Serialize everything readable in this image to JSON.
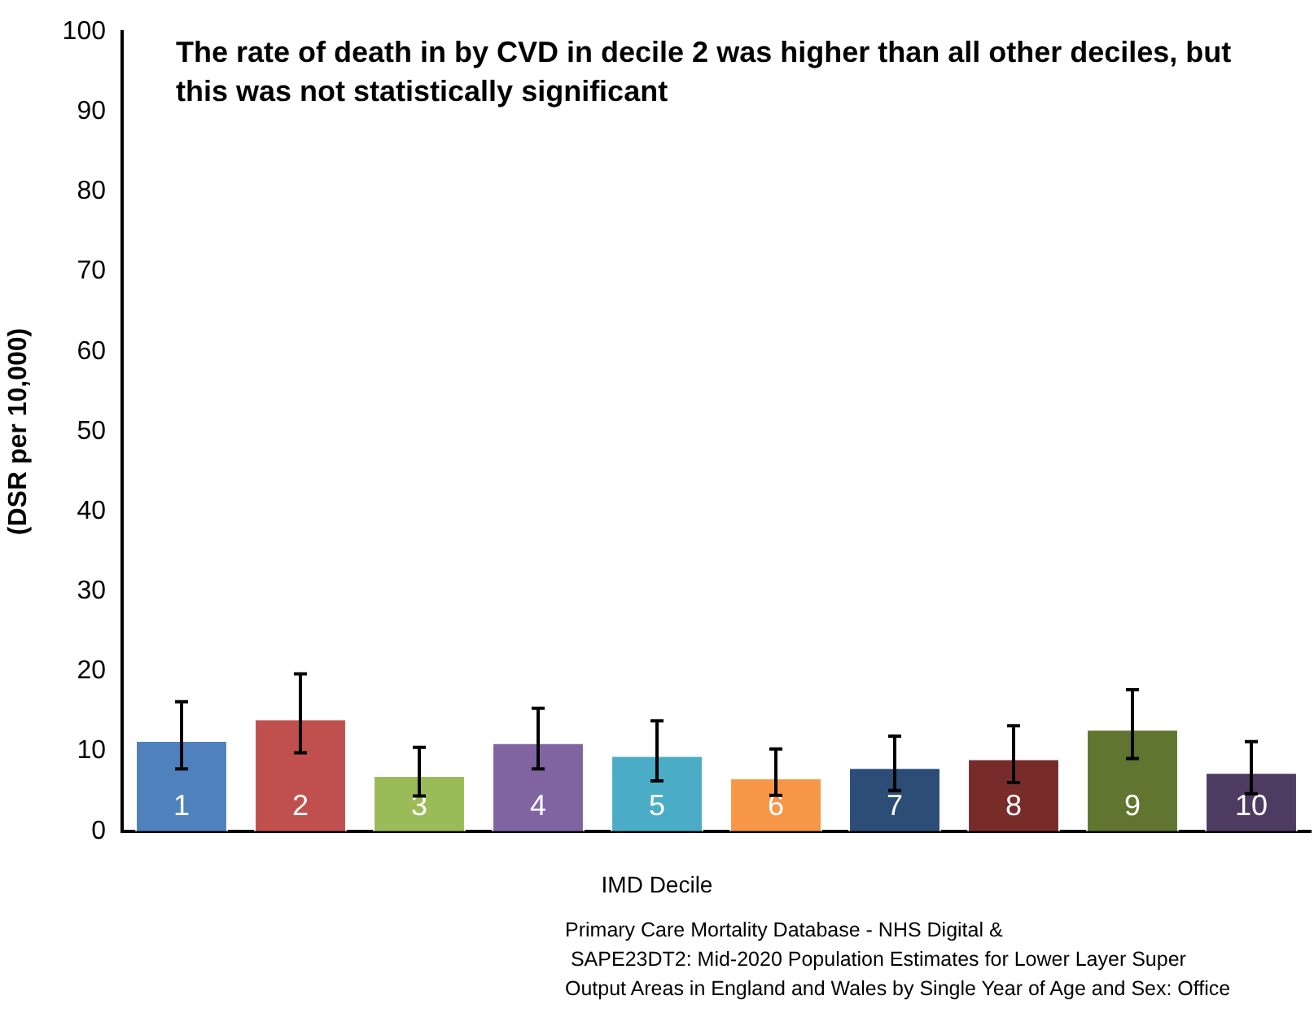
{
  "chart_data": {
    "type": "bar",
    "title": "The rate of death in by CVD in decile 2 was higher than all other deciles, but this was not statistically significant",
    "xlabel": "IMD Decile",
    "ylabel": "(DSR per 10,000)",
    "categories": [
      "1",
      "2",
      "3",
      "4",
      "5",
      "6",
      "7",
      "8",
      "9",
      "10"
    ],
    "values": [
      11.4,
      14.1,
      7.0,
      11.1,
      9.5,
      6.7,
      8.0,
      9.1,
      12.8,
      7.4
    ],
    "errors": [
      [
        7.8,
        16.2
      ],
      [
        9.8,
        19.7
      ],
      [
        4.4,
        10.5
      ],
      [
        7.8,
        15.4
      ],
      [
        6.3,
        13.8
      ],
      [
        4.5,
        10.3
      ],
      [
        5.1,
        11.9
      ],
      [
        6.1,
        13.2
      ],
      [
        9.1,
        17.7
      ],
      [
        4.7,
        11.2
      ]
    ],
    "colors": [
      "#4f81bd",
      "#c0504d",
      "#9bbb59",
      "#8064a2",
      "#4bacc6",
      "#f79646",
      "#2c4d75",
      "#772c2a",
      "#5f7530",
      "#4d3b62"
    ],
    "ylim": [
      0,
      100
    ],
    "yticks": [
      0,
      10,
      20,
      30,
      40,
      50,
      60,
      70,
      80,
      90,
      100
    ],
    "grid": false,
    "legend": false,
    "annotations": [
      "Primary Care Mortality Database - NHS Digital &",
      " SAPE23DT2: Mid-2020 Population Estimates for Lower Layer Super",
      "Output Areas in England and Wales by Single Year of Age and Sex: Office"
    ]
  }
}
